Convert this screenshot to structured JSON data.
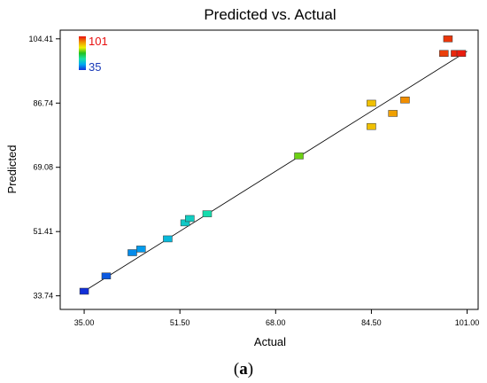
{
  "chart_data": {
    "type": "scatter",
    "title": "Predicted vs. Actual",
    "xlabel": "Actual",
    "ylabel": "Predicted",
    "xlim": [
      30.87,
      102.9
    ],
    "ylim": [
      30.0,
      106.8
    ],
    "xticks": [
      "35.00",
      "51.50",
      "68.00",
      "84.50",
      "101.00"
    ],
    "xtick_values": [
      35.0,
      51.5,
      68.0,
      84.5,
      101.0
    ],
    "yticks": [
      "33.74",
      "51.41",
      "69.08",
      "86.74",
      "104.41"
    ],
    "ytick_values": [
      33.74,
      51.41,
      69.08,
      86.74,
      104.41
    ],
    "grid": false,
    "reference_line": {
      "from": [
        35.0,
        35.0
      ],
      "to": [
        101.0,
        101.0
      ]
    },
    "color_scale": {
      "min": 35,
      "max": 101,
      "min_label": "35",
      "max_label": "101",
      "colors": [
        "#1230d8",
        "#00a8f0",
        "#18e0a8",
        "#20c020",
        "#f0f000",
        "#f09000",
        "#e81010"
      ]
    },
    "points": [
      {
        "x": 35.0,
        "y": 35.0
      },
      {
        "x": 38.8,
        "y": 39.2
      },
      {
        "x": 43.3,
        "y": 45.6
      },
      {
        "x": 44.8,
        "y": 46.6
      },
      {
        "x": 49.4,
        "y": 49.4
      },
      {
        "x": 52.4,
        "y": 53.8
      },
      {
        "x": 53.2,
        "y": 55.0
      },
      {
        "x": 56.2,
        "y": 56.3
      },
      {
        "x": 72.0,
        "y": 72.2
      },
      {
        "x": 84.5,
        "y": 80.3
      },
      {
        "x": 84.5,
        "y": 86.7
      },
      {
        "x": 88.2,
        "y": 83.9
      },
      {
        "x": 90.3,
        "y": 87.6
      },
      {
        "x": 97.0,
        "y": 100.4
      },
      {
        "x": 97.7,
        "y": 104.4
      },
      {
        "x": 99.0,
        "y": 100.4
      },
      {
        "x": 100.0,
        "y": 100.4
      }
    ]
  },
  "caption": {
    "label": "a"
  }
}
